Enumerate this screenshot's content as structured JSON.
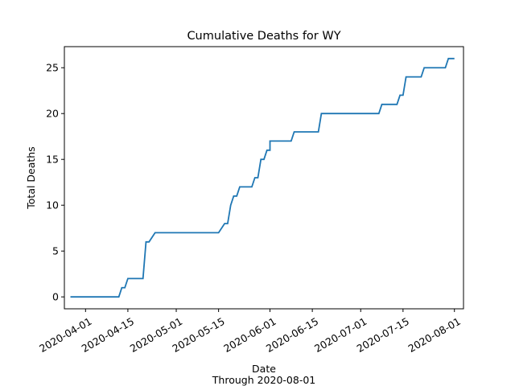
{
  "chart_data": {
    "type": "line",
    "title": "Cumulative Deaths for WY",
    "xlabel": "Date",
    "xlabel_sub": "Through 2020-08-01",
    "ylabel": "Total Deaths",
    "x_range": [
      "2020-03-25",
      "2020-08-04"
    ],
    "ylim": [
      -1.3,
      27.3
    ],
    "x_ticks": [
      "2020-04-01",
      "2020-04-15",
      "2020-05-01",
      "2020-05-15",
      "2020-06-01",
      "2020-06-15",
      "2020-07-01",
      "2020-07-15",
      "2020-08-01"
    ],
    "y_ticks": [
      0,
      5,
      10,
      15,
      20,
      25
    ],
    "grid": false,
    "line_color": "#1f77b4",
    "series": [
      {
        "points": [
          [
            "2020-03-27",
            0
          ],
          [
            "2020-04-12",
            0
          ],
          [
            "2020-04-13",
            1
          ],
          [
            "2020-04-14",
            1
          ],
          [
            "2020-04-15",
            2
          ],
          [
            "2020-04-20",
            2
          ],
          [
            "2020-04-21",
            6
          ],
          [
            "2020-04-22",
            6
          ],
          [
            "2020-04-24",
            7
          ],
          [
            "2020-05-15",
            7
          ],
          [
            "2020-05-17",
            8
          ],
          [
            "2020-05-18",
            8
          ],
          [
            "2020-05-19",
            10
          ],
          [
            "2020-05-20",
            11
          ],
          [
            "2020-05-21",
            11
          ],
          [
            "2020-05-22",
            12
          ],
          [
            "2020-05-26",
            12
          ],
          [
            "2020-05-27",
            13
          ],
          [
            "2020-05-28",
            13
          ],
          [
            "2020-05-29",
            15
          ],
          [
            "2020-05-30",
            15
          ],
          [
            "2020-05-31",
            16
          ],
          [
            "2020-06-01",
            16
          ],
          [
            "2020-06-01",
            17
          ],
          [
            "2020-06-08",
            17
          ],
          [
            "2020-06-09",
            18
          ],
          [
            "2020-06-17",
            18
          ],
          [
            "2020-06-18",
            20
          ],
          [
            "2020-07-07",
            20
          ],
          [
            "2020-07-08",
            21
          ],
          [
            "2020-07-13",
            21
          ],
          [
            "2020-07-14",
            22
          ],
          [
            "2020-07-15",
            22
          ],
          [
            "2020-07-16",
            24
          ],
          [
            "2020-07-21",
            24
          ],
          [
            "2020-07-22",
            25
          ],
          [
            "2020-07-29",
            25
          ],
          [
            "2020-07-30",
            26
          ],
          [
            "2020-08-01",
            26
          ]
        ]
      }
    ]
  }
}
